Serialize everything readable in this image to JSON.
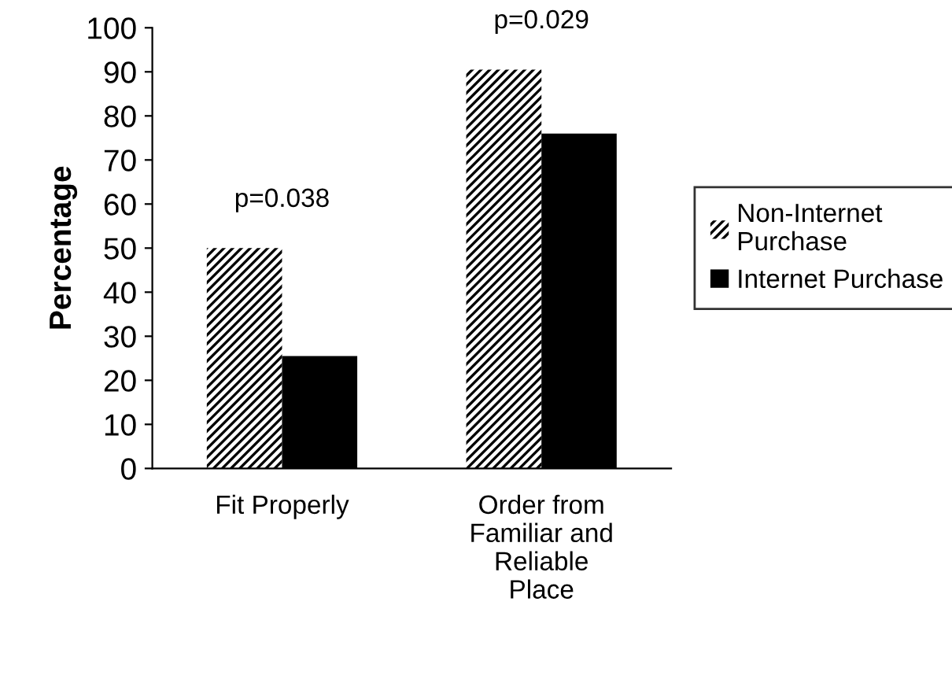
{
  "chart_data": {
    "type": "bar",
    "ylabel": "Percentage",
    "categories": [
      "Fit Properly",
      "Order from\nFamiliar and\nReliable\nPlace"
    ],
    "series": [
      {
        "name": "Non-Internet\nPurchase",
        "color": "#000000",
        "values": [
          50,
          90.5
        ]
      },
      {
        "name": "Internet Purchase",
        "color": "#000000",
        "values": [
          25.5,
          76
        ]
      }
    ],
    "ylim": [
      0,
      100
    ],
    "yticks": [
      0,
      10,
      20,
      30,
      40,
      50,
      60,
      70,
      80,
      90,
      100
    ],
    "grid": false,
    "legend": "right",
    "annotations": [
      "p=0.038",
      "p=0.029"
    ]
  }
}
